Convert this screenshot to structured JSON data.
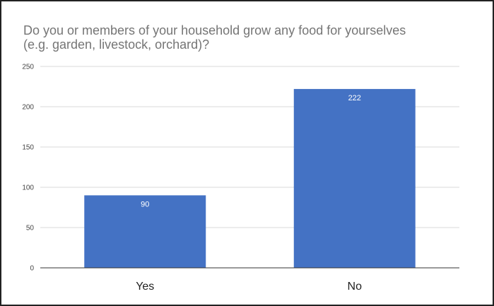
{
  "chart_data": {
    "type": "bar",
    "title_lines": [
      "Do you or members of your household grow any food for yourselves",
      "(e.g. garden, livestock, orchard)?"
    ],
    "categories": [
      "Yes",
      "No"
    ],
    "values": [
      90,
      222
    ],
    "data_labels": [
      "90",
      "222"
    ],
    "ylim": [
      0,
      250
    ],
    "yticks": [
      "0",
      "50",
      "100",
      "150",
      "200",
      "250"
    ],
    "grid": true,
    "bar_color": "#4472c4",
    "grid_color": "#d9d9d9"
  }
}
